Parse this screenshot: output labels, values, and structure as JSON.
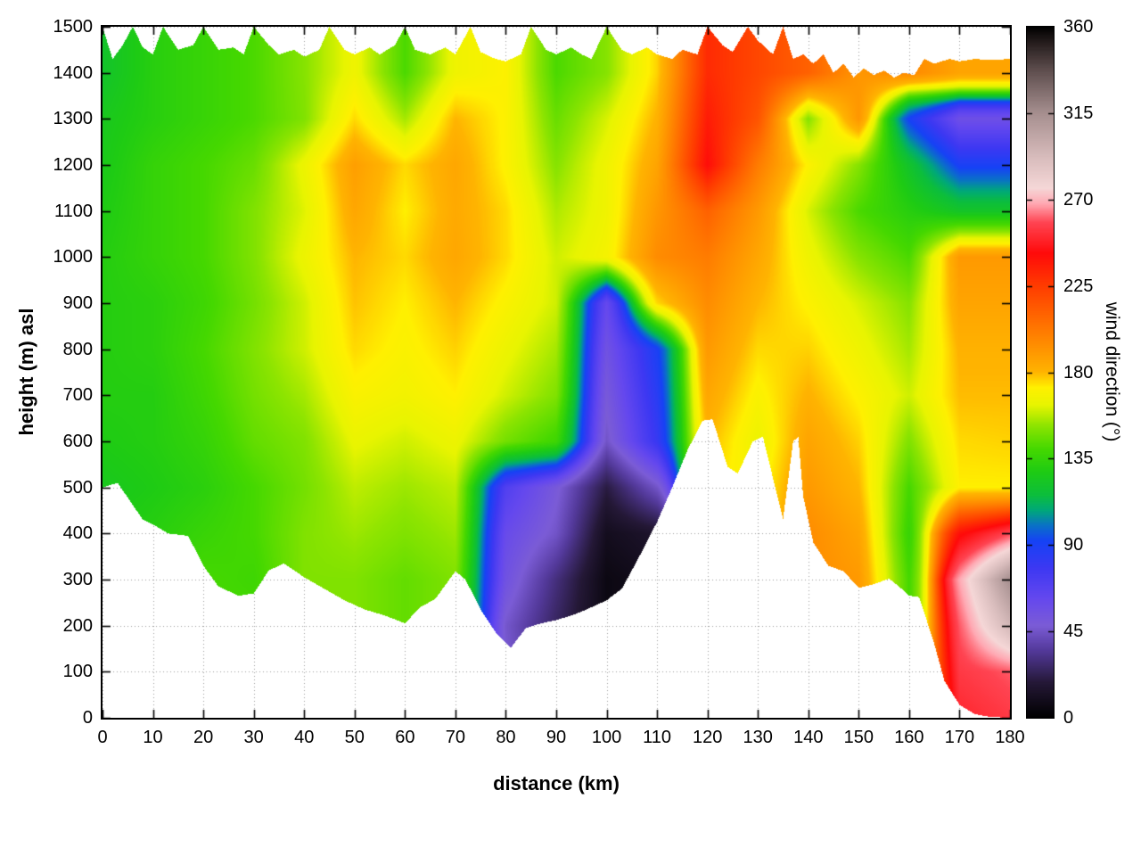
{
  "figure": {
    "background": "#ffffff"
  },
  "axes": {
    "x": {
      "label": "distance (km)",
      "min": 0,
      "max": 180,
      "ticks": [
        0,
        10,
        20,
        30,
        40,
        50,
        60,
        70,
        80,
        90,
        100,
        110,
        120,
        130,
        140,
        150,
        160,
        170,
        180
      ]
    },
    "y": {
      "label": "height (m) asl",
      "min": 0,
      "max": 1500,
      "ticks": [
        0,
        100,
        200,
        300,
        400,
        500,
        600,
        700,
        800,
        900,
        1000,
        1100,
        1200,
        1300,
        1400,
        1500
      ]
    },
    "colorbar": {
      "label": "wind direction (°)",
      "min": 0,
      "max": 360,
      "ticks": [
        0,
        45,
        90,
        135,
        180,
        225,
        270,
        315,
        360
      ]
    }
  },
  "chart_data": {
    "type": "heatmap",
    "title": "",
    "xlabel": "distance (km)",
    "ylabel": "height (m) asl",
    "colorbar_label": "wind direction (°)",
    "xlim": [
      0,
      180
    ],
    "ylim": [
      0,
      1500
    ],
    "clim": [
      0,
      360
    ],
    "grid": "dotted",
    "grid_color": "#999999",
    "x_km": [
      0,
      10,
      20,
      30,
      40,
      50,
      60,
      70,
      80,
      90,
      100,
      110,
      120,
      130,
      140,
      150,
      160,
      170,
      180
    ],
    "height_m": [
      0,
      100,
      200,
      300,
      400,
      500,
      600,
      700,
      800,
      900,
      1000,
      1100,
      1200,
      1300,
      1400,
      1500
    ],
    "wind_direction_deg": [
      [
        130,
        133,
        138,
        140,
        148,
        150,
        146,
        150,
        50,
        28,
        8,
        15,
        170,
        168,
        192,
        188,
        140,
        250,
        255
      ],
      [
        130,
        134,
        139,
        140,
        149,
        150,
        146,
        150,
        48,
        27,
        7,
        14,
        170,
        168,
        193,
        189,
        140,
        255,
        260
      ],
      [
        130,
        135,
        140,
        140,
        150,
        150,
        145,
        150,
        46,
        25,
        6,
        12,
        170,
        169,
        194,
        190,
        140,
        260,
        295
      ],
      [
        130,
        135,
        140,
        138,
        150,
        150,
        145,
        150,
        55,
        30,
        6,
        10,
        170,
        170,
        195,
        190,
        140,
        268,
        315
      ],
      [
        127,
        131,
        136,
        140,
        150,
        154,
        150,
        154,
        60,
        45,
        10,
        15,
        172,
        170,
        195,
        186,
        136,
        240,
        258
      ],
      [
        125,
        128,
        132,
        140,
        148,
        158,
        154,
        158,
        70,
        50,
        20,
        45,
        174,
        168,
        190,
        180,
        140,
        172,
        172
      ],
      [
        128,
        130,
        135,
        145,
        150,
        164,
        160,
        165,
        148,
        138,
        45,
        80,
        180,
        165,
        186,
        176,
        150,
        175,
        176
      ],
      [
        130,
        130,
        138,
        148,
        155,
        170,
        167,
        172,
        160,
        150,
        50,
        85,
        185,
        170,
        181,
        171,
        160,
        179,
        179
      ],
      [
        130,
        132,
        140,
        150,
        160,
        175,
        170,
        176,
        165,
        155,
        55,
        90,
        190,
        175,
        176,
        166,
        155,
        181,
        181
      ],
      [
        130,
        132,
        138,
        148,
        160,
        178,
        172,
        180,
        170,
        160,
        62,
        175,
        195,
        180,
        171,
        161,
        151,
        186,
        186
      ],
      [
        130,
        135,
        140,
        150,
        165,
        180,
        175,
        185,
        175,
        160,
        168,
        195,
        201,
        185,
        166,
        151,
        141,
        190,
        190
      ],
      [
        128,
        135,
        140,
        150,
        162,
        185,
        172,
        184,
        175,
        156,
        166,
        191,
        211,
        190,
        161,
        141,
        131,
        122,
        122
      ],
      [
        126,
        135,
        140,
        146,
        165,
        188,
        175,
        185,
        171,
        151,
        166,
        186,
        241,
        201,
        171,
        151,
        121,
        90,
        90
      ],
      [
        125,
        131,
        136,
        141,
        150,
        175,
        155,
        180,
        171,
        146,
        161,
        181,
        236,
        216,
        151,
        191,
        91,
        57,
        57
      ],
      [
        121,
        131,
        136,
        141,
        151,
        166,
        141,
        166,
        171,
        141,
        151,
        176,
        231,
        221,
        211,
        191,
        196,
        186,
        186
      ],
      [
        121,
        131,
        136,
        141,
        151,
        166,
        141,
        166,
        171,
        141,
        151,
        176,
        231,
        221,
        211,
        191,
        196,
        186,
        186
      ]
    ],
    "terrain_profile_xh": [
      [
        0,
        500
      ],
      [
        3,
        510
      ],
      [
        8,
        430
      ],
      [
        10,
        420
      ],
      [
        13,
        400
      ],
      [
        17,
        395
      ],
      [
        20,
        330
      ],
      [
        23,
        285
      ],
      [
        27,
        265
      ],
      [
        30,
        270
      ],
      [
        33,
        320
      ],
      [
        36,
        335
      ],
      [
        40,
        305
      ],
      [
        44,
        280
      ],
      [
        48,
        255
      ],
      [
        52,
        235
      ],
      [
        56,
        222
      ],
      [
        60,
        205
      ],
      [
        63,
        240
      ],
      [
        66,
        258
      ],
      [
        70,
        318
      ],
      [
        72,
        300
      ],
      [
        75,
        235
      ],
      [
        78,
        185
      ],
      [
        81,
        152
      ],
      [
        84,
        195
      ],
      [
        87,
        205
      ],
      [
        90,
        212
      ],
      [
        93,
        222
      ],
      [
        96,
        235
      ],
      [
        100,
        255
      ],
      [
        103,
        280
      ],
      [
        106,
        340
      ],
      [
        110,
        425
      ],
      [
        113,
        500
      ],
      [
        116,
        580
      ],
      [
        119,
        645
      ],
      [
        121,
        648
      ],
      [
        124,
        545
      ],
      [
        126,
        530
      ],
      [
        129,
        600
      ],
      [
        131,
        610
      ],
      [
        133,
        520
      ],
      [
        135,
        432
      ],
      [
        137,
        600
      ],
      [
        138,
        610
      ],
      [
        139,
        480
      ],
      [
        141,
        380
      ],
      [
        144,
        330
      ],
      [
        147,
        318
      ],
      [
        150,
        282
      ],
      [
        153,
        290
      ],
      [
        156,
        302
      ],
      [
        158,
        285
      ],
      [
        160,
        265
      ],
      [
        162,
        262
      ],
      [
        165,
        160
      ],
      [
        167,
        80
      ],
      [
        170,
        28
      ],
      [
        173,
        8
      ],
      [
        176,
        2
      ],
      [
        180,
        0
      ]
    ],
    "top_edge_xh": [
      [
        0,
        1500
      ],
      [
        2,
        1430
      ],
      [
        4,
        1460
      ],
      [
        6,
        1500
      ],
      [
        8,
        1455
      ],
      [
        10,
        1440
      ],
      [
        12,
        1500
      ],
      [
        15,
        1450
      ],
      [
        18,
        1460
      ],
      [
        20,
        1500
      ],
      [
        23,
        1450
      ],
      [
        26,
        1455
      ],
      [
        28,
        1440
      ],
      [
        30,
        1500
      ],
      [
        33,
        1460
      ],
      [
        35,
        1440
      ],
      [
        38,
        1450
      ],
      [
        40,
        1435
      ],
      [
        43,
        1450
      ],
      [
        45,
        1500
      ],
      [
        48,
        1450
      ],
      [
        50,
        1440
      ],
      [
        53,
        1455
      ],
      [
        55,
        1440
      ],
      [
        58,
        1460
      ],
      [
        60,
        1500
      ],
      [
        62,
        1450
      ],
      [
        65,
        1440
      ],
      [
        68,
        1455
      ],
      [
        70,
        1440
      ],
      [
        73,
        1500
      ],
      [
        75,
        1445
      ],
      [
        78,
        1430
      ],
      [
        80,
        1425
      ],
      [
        83,
        1440
      ],
      [
        85,
        1500
      ],
      [
        88,
        1450
      ],
      [
        90,
        1440
      ],
      [
        93,
        1455
      ],
      [
        95,
        1440
      ],
      [
        97,
        1430
      ],
      [
        100,
        1500
      ],
      [
        103,
        1450
      ],
      [
        105,
        1440
      ],
      [
        108,
        1455
      ],
      [
        110,
        1440
      ],
      [
        113,
        1430
      ],
      [
        115,
        1450
      ],
      [
        118,
        1440
      ],
      [
        120,
        1500
      ],
      [
        123,
        1460
      ],
      [
        125,
        1445
      ],
      [
        128,
        1500
      ],
      [
        130,
        1470
      ],
      [
        133,
        1440
      ],
      [
        135,
        1500
      ],
      [
        137,
        1430
      ],
      [
        139,
        1440
      ],
      [
        141,
        1420
      ],
      [
        143,
        1440
      ],
      [
        145,
        1400
      ],
      [
        147,
        1420
      ],
      [
        149,
        1390
      ],
      [
        151,
        1410
      ],
      [
        153,
        1395
      ],
      [
        155,
        1405
      ],
      [
        157,
        1390
      ],
      [
        159,
        1400
      ],
      [
        161,
        1395
      ],
      [
        163,
        1430
      ],
      [
        165,
        1420
      ],
      [
        168,
        1430
      ],
      [
        170,
        1425
      ],
      [
        173,
        1430
      ],
      [
        176,
        1428
      ],
      [
        180,
        1430
      ]
    ],
    "colormap_stops_deg_hex": [
      [
        0,
        "#000000"
      ],
      [
        18,
        "#241836"
      ],
      [
        35,
        "#53399a"
      ],
      [
        48,
        "#7b5cd6"
      ],
      [
        62,
        "#6548ee"
      ],
      [
        78,
        "#3d38f2"
      ],
      [
        92,
        "#1642f5"
      ],
      [
        100,
        "#0a70c8"
      ],
      [
        108,
        "#00a87a"
      ],
      [
        116,
        "#0cbe3c"
      ],
      [
        128,
        "#1ecb14"
      ],
      [
        140,
        "#45d800"
      ],
      [
        152,
        "#8ce400"
      ],
      [
        163,
        "#e8f400"
      ],
      [
        172,
        "#fff000"
      ],
      [
        180,
        "#ffb400"
      ],
      [
        195,
        "#ff8c00"
      ],
      [
        210,
        "#ff6400"
      ],
      [
        225,
        "#ff3c00"
      ],
      [
        242,
        "#ff0a0a"
      ],
      [
        258,
        "#ff4452"
      ],
      [
        268,
        "#ffaab4"
      ],
      [
        276,
        "#f5d7d7"
      ],
      [
        292,
        "#d8bcbc"
      ],
      [
        315,
        "#a68f8f"
      ],
      [
        338,
        "#5c4c4c"
      ],
      [
        352,
        "#241c1c"
      ],
      [
        360,
        "#000000"
      ]
    ]
  }
}
